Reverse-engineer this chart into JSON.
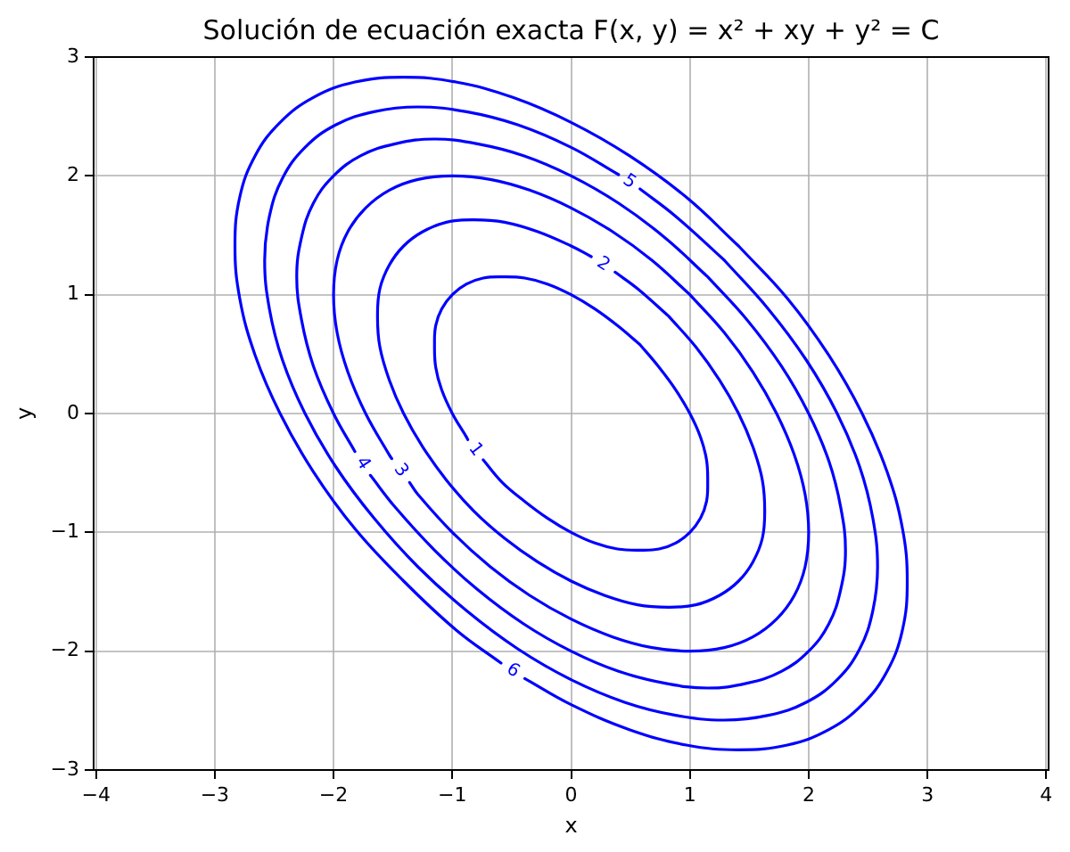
{
  "chart_data": {
    "type": "line",
    "title": "Solución de ecuación exacta F(x, y) = x² + xy + y² = C",
    "xlabel": "x",
    "ylabel": "y",
    "xlim": [
      -4.02,
      4.02
    ],
    "ylim": [
      -3,
      3
    ],
    "xticks": [
      -4,
      -3,
      -2,
      -1,
      0,
      1,
      2,
      3,
      4
    ],
    "yticks": [
      -3,
      -2,
      -1,
      0,
      1,
      2,
      3
    ],
    "grid": true,
    "series": [
      {
        "name": "1",
        "color": "#0000ff",
        "x": [
          0.58,
          0.74,
          0.88,
          1,
          1.09,
          1.14,
          1.15,
          1.14,
          1.09,
          1,
          0.88,
          0.74,
          0.58,
          0.39,
          0.2,
          0,
          -0.2,
          -0.39,
          -0.58,
          -0.74,
          null,
          -0.87,
          -0.88,
          -1,
          -1.09,
          -1.14,
          -1.15,
          -1.14,
          -1.09,
          -1,
          -0.88,
          -0.74,
          -0.58,
          -0.39,
          -0.2,
          0,
          0.2,
          0.39,
          0.58
        ],
        "values": [
          0.58,
          0.39,
          0.2,
          0,
          -0.2,
          -0.39,
          -0.58,
          -0.74,
          -0.88,
          -1,
          -1.09,
          -1.14,
          -1.15,
          -1.14,
          -1.09,
          -1,
          -0.88,
          -0.74,
          -0.58,
          -0.39,
          null,
          -0.22,
          -0.2,
          0,
          0.2,
          0.39,
          0.58,
          0.74,
          0.88,
          1,
          1.09,
          1.14,
          1.15,
          1.14,
          1.09,
          1,
          0.88,
          0.74,
          0.58
        ]
      },
      {
        "name": "2",
        "color": "#0000ff",
        "x": [
          0.82,
          1.05,
          1.25,
          1.41,
          1.53,
          1.61,
          1.63,
          1.61,
          1.53,
          1.41,
          1.25,
          1.05,
          0.82,
          0.56,
          0.28,
          0,
          -0.28,
          -0.56,
          -0.82,
          -1.05,
          -1.25,
          -1.41,
          -1.53,
          -1.61,
          -1.63,
          -1.61,
          -1.53,
          -1.41,
          -1.25,
          -1.05,
          -0.82,
          -0.56,
          -0.28,
          0,
          0.17,
          null,
          0.37,
          0.56,
          0.82
        ],
        "values": [
          0.82,
          0.56,
          0.28,
          0,
          -0.28,
          -0.56,
          -0.82,
          -1.05,
          -1.25,
          -1.41,
          -1.53,
          -1.61,
          -1.63,
          -1.61,
          -1.53,
          -1.41,
          -1.25,
          -1.05,
          -0.82,
          -0.56,
          -0.28,
          0,
          0.28,
          0.56,
          0.82,
          1.05,
          1.25,
          1.41,
          1.53,
          1.61,
          1.63,
          1.61,
          1.53,
          1.41,
          1.32,
          null,
          1.19,
          1.05,
          0.82
        ]
      },
      {
        "name": "3",
        "color": "#0000ff",
        "x": [
          1,
          1.29,
          1.53,
          1.73,
          1.88,
          1.97,
          2,
          1.97,
          1.88,
          1.73,
          1.53,
          1.29,
          1,
          0.68,
          0.35,
          0,
          -0.35,
          -0.68,
          -1,
          -1.29,
          -1.36,
          null,
          -1.51,
          -1.53,
          -1.73,
          -1.88,
          -1.97,
          -2,
          -1.97,
          -1.88,
          -1.73,
          -1.53,
          -1.29,
          -1,
          -0.68,
          -0.35,
          0,
          0.35,
          0.68,
          1
        ],
        "values": [
          1,
          0.68,
          0.35,
          0,
          -0.35,
          -0.68,
          -1,
          -1.29,
          -1.53,
          -1.73,
          -1.88,
          -1.97,
          -2,
          -1.97,
          -1.88,
          -1.73,
          -1.53,
          -1.29,
          -1,
          -0.68,
          -0.58,
          null,
          -0.38,
          -0.35,
          0,
          0.35,
          0.68,
          1,
          1.29,
          1.53,
          1.73,
          1.88,
          1.97,
          2,
          1.97,
          1.88,
          1.73,
          1.53,
          1.29,
          1
        ]
      },
      {
        "name": "4",
        "color": "#0000ff",
        "x": [
          1.15,
          1.48,
          1.77,
          2,
          2.17,
          2.27,
          2.31,
          2.27,
          2.17,
          2,
          1.77,
          1.48,
          1.15,
          0.79,
          0.4,
          0,
          -0.4,
          -0.79,
          -1.15,
          -1.48,
          -1.69,
          null,
          -1.82,
          -2,
          -2.17,
          -2.27,
          -2.31,
          -2.27,
          -2.17,
          -2,
          -1.77,
          -1.48,
          -1.15,
          -0.79,
          -0.4,
          0,
          0.4,
          0.79,
          1.15
        ],
        "values": [
          1.15,
          0.79,
          0.4,
          0,
          -0.4,
          -0.79,
          -1.15,
          -1.48,
          -1.77,
          -2,
          -2.17,
          -2.27,
          -2.31,
          -2.27,
          -2.17,
          -2,
          -1.77,
          -1.48,
          -1.15,
          -0.79,
          -0.52,
          null,
          -0.32,
          0,
          0.4,
          0.79,
          1.15,
          1.48,
          1.77,
          2,
          2.17,
          2.27,
          2.31,
          2.27,
          2.17,
          2,
          1.77,
          1.48,
          1.15
        ]
      },
      {
        "name": "5",
        "color": "#0000ff",
        "x": [
          1.29,
          1.66,
          1.98,
          2.24,
          2.43,
          2.54,
          2.58,
          2.54,
          2.43,
          2.24,
          1.98,
          1.66,
          1.29,
          0.88,
          0.45,
          0,
          -0.45,
          -0.88,
          -1.29,
          -1.66,
          -1.98,
          -2.24,
          -2.43,
          -2.54,
          -2.58,
          -2.54,
          -2.43,
          -2.24,
          -1.98,
          -1.66,
          -1.29,
          -0.88,
          -0.45,
          0,
          0.4,
          null,
          0.58,
          0.88,
          1.29
        ],
        "values": [
          1.29,
          0.88,
          0.45,
          0,
          -0.45,
          -0.88,
          -1.29,
          -1.66,
          -1.98,
          -2.24,
          -2.43,
          -2.54,
          -2.58,
          -2.54,
          -2.43,
          -2.24,
          -1.98,
          -1.66,
          -1.29,
          -0.88,
          -0.45,
          0,
          0.45,
          0.88,
          1.29,
          1.66,
          1.98,
          2.24,
          2.43,
          2.54,
          2.58,
          2.54,
          2.43,
          2.24,
          2.01,
          null,
          1.89,
          1.66,
          1.29
        ]
      },
      {
        "name": "6",
        "color": "#0000ff",
        "x": [
          1.41,
          1.82,
          2.17,
          2.45,
          2.66,
          2.79,
          2.83,
          2.79,
          2.66,
          2.45,
          2.17,
          1.82,
          1.41,
          0.97,
          0.49,
          0,
          -0.39,
          null,
          -0.59,
          -0.97,
          -1.41,
          -1.82,
          -2.17,
          -2.45,
          -2.66,
          -2.79,
          -2.83,
          -2.79,
          -2.66,
          -2.45,
          -2.17,
          -1.82,
          -1.41,
          -0.97,
          -0.49,
          0,
          0.49,
          0.97,
          1.41
        ],
        "values": [
          1.41,
          0.97,
          0.49,
          0,
          -0.49,
          -0.97,
          -1.41,
          -1.82,
          -2.17,
          -2.45,
          -2.66,
          -2.79,
          -2.83,
          -2.79,
          -2.66,
          -2.45,
          -2.23,
          null,
          -2.1,
          -1.82,
          -1.41,
          -0.97,
          -0.49,
          0,
          0.49,
          0.97,
          1.41,
          1.82,
          2.17,
          2.45,
          2.66,
          2.79,
          2.83,
          2.79,
          2.66,
          2.45,
          2.17,
          1.82,
          1.41
        ]
      }
    ]
  }
}
